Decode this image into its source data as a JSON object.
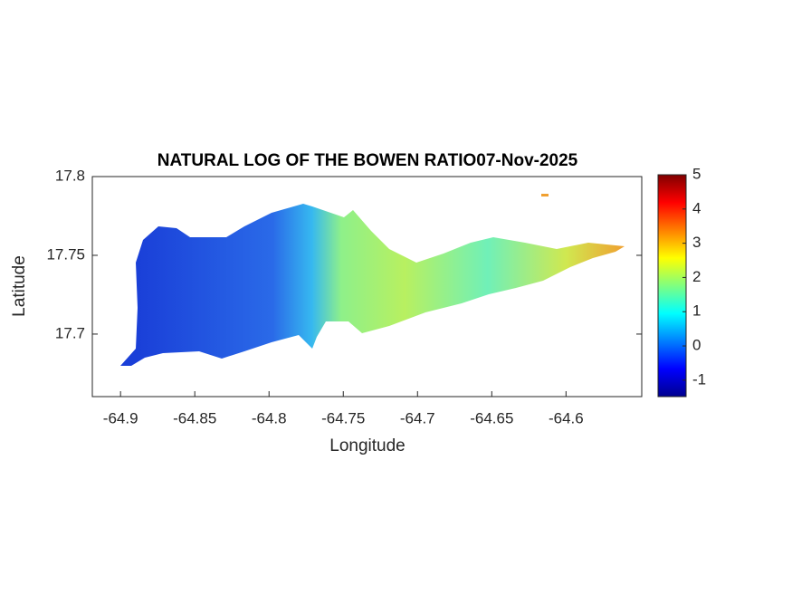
{
  "chart_data": {
    "type": "map",
    "title": "NATURAL LOG OF THE BOWEN RATIO07-Nov-2025",
    "x_label": "Longitude",
    "y_label": "Latitude",
    "xlim": [
      -64.919,
      -64.549
    ],
    "xticks": [
      -64.9,
      -64.85,
      -64.8,
      -64.75,
      -64.7,
      -64.65,
      -64.6
    ],
    "ylim": [
      17.6603,
      17.8
    ],
    "yticks": [
      17.7,
      17.75,
      17.8
    ],
    "clim": [
      -1.48,
      5
    ],
    "cticks": [
      -1,
      0,
      1,
      2,
      3,
      4,
      5
    ]
  }
}
